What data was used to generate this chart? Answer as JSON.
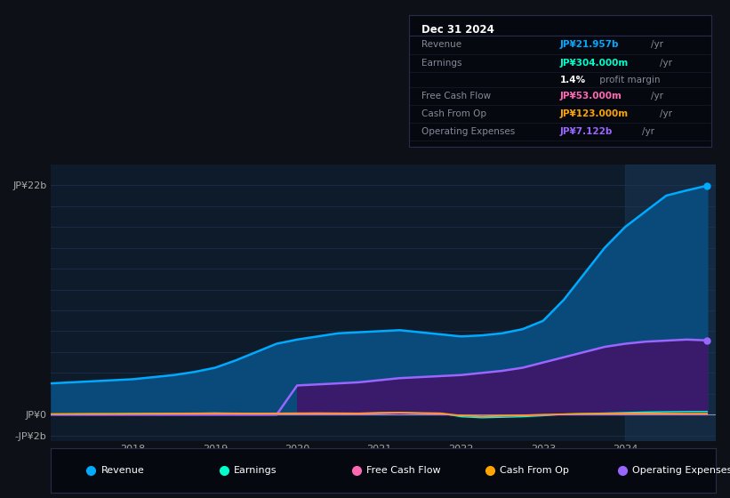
{
  "background_color": "#0d1117",
  "plot_bg_color": "#0d1b2a",
  "grid_color": "#1e3050",
  "years": [
    2017.0,
    2017.25,
    2017.5,
    2017.75,
    2018.0,
    2018.25,
    2018.5,
    2018.75,
    2019.0,
    2019.25,
    2019.5,
    2019.75,
    2020.0,
    2020.25,
    2020.5,
    2020.75,
    2021.0,
    2021.25,
    2021.5,
    2021.75,
    2022.0,
    2022.25,
    2022.5,
    2022.75,
    2023.0,
    2023.25,
    2023.5,
    2023.75,
    2024.0,
    2024.25,
    2024.5,
    2024.75,
    2025.0
  ],
  "revenue": [
    3.0,
    3.1,
    3.2,
    3.3,
    3.4,
    3.6,
    3.8,
    4.1,
    4.5,
    5.2,
    6.0,
    6.8,
    7.2,
    7.5,
    7.8,
    7.9,
    8.0,
    8.1,
    7.9,
    7.7,
    7.5,
    7.6,
    7.8,
    8.2,
    9.0,
    11.0,
    13.5,
    16.0,
    18.0,
    19.5,
    21.0,
    21.5,
    21.957
  ],
  "operating_expenses": [
    0.0,
    0.0,
    0.0,
    0.0,
    0.0,
    0.0,
    0.0,
    0.0,
    0.0,
    0.0,
    0.0,
    0.0,
    2.8,
    2.9,
    3.0,
    3.1,
    3.3,
    3.5,
    3.6,
    3.7,
    3.8,
    4.0,
    4.2,
    4.5,
    5.0,
    5.5,
    6.0,
    6.5,
    6.8,
    7.0,
    7.1,
    7.2,
    7.122
  ],
  "earnings": [
    0.05,
    0.06,
    0.07,
    0.08,
    0.1,
    0.11,
    0.12,
    0.13,
    0.15,
    0.13,
    0.12,
    0.11,
    0.1,
    0.09,
    0.1,
    0.12,
    0.15,
    0.18,
    0.14,
    0.12,
    -0.2,
    -0.3,
    -0.25,
    -0.2,
    -0.1,
    0.05,
    0.1,
    0.15,
    0.2,
    0.25,
    0.28,
    0.3,
    0.304
  ],
  "free_cash_flow": [
    0.02,
    0.02,
    0.02,
    0.02,
    0.03,
    0.04,
    0.05,
    0.05,
    0.06,
    0.05,
    0.04,
    0.05,
    0.06,
    0.07,
    0.06,
    0.05,
    0.1,
    0.15,
    0.1,
    0.05,
    -0.1,
    -0.2,
    -0.15,
    -0.1,
    -0.05,
    0.01,
    0.03,
    0.05,
    0.06,
    0.07,
    0.06,
    0.05,
    0.053
  ],
  "cash_from_op": [
    0.08,
    0.09,
    0.1,
    0.1,
    0.11,
    0.12,
    0.13,
    0.14,
    0.15,
    0.14,
    0.13,
    0.14,
    0.15,
    0.16,
    0.15,
    0.14,
    0.2,
    0.22,
    0.18,
    0.15,
    -0.08,
    -0.15,
    -0.1,
    -0.05,
    0.02,
    0.06,
    0.1,
    0.12,
    0.13,
    0.14,
    0.13,
    0.12,
    0.123
  ],
  "revenue_color": "#00aaff",
  "revenue_fill": "#0a4a7a",
  "earnings_color": "#00ffcc",
  "free_cash_flow_color": "#ff69b4",
  "cash_from_op_color": "#ffa500",
  "op_expenses_color": "#9966ff",
  "op_expenses_fill": "#3a1a6a",
  "highlight_color": "#1a3a5a",
  "ylim": [
    -2.5,
    24.0
  ],
  "xlim": [
    2017.0,
    2025.1
  ],
  "yticks": [
    -2,
    0,
    22
  ],
  "ytick_labels": [
    "-JP¥2b",
    "JP¥0",
    "JP¥22b"
  ],
  "xtick_labels": [
    "2018",
    "2019",
    "2020",
    "2021",
    "2022",
    "2023",
    "2024"
  ],
  "xtick_positions": [
    2018,
    2019,
    2020,
    2021,
    2022,
    2023,
    2024
  ],
  "info_box": {
    "title": "Dec 31 2024",
    "rows": [
      {
        "label": "Revenue",
        "value": "JP¥21.957b",
        "unit": "/yr",
        "color": "#00aaff"
      },
      {
        "label": "Earnings",
        "value": "JP¥304.000m",
        "unit": "/yr",
        "color": "#00ffcc"
      },
      {
        "label": "",
        "value": "1.4%",
        "unit": " profit margin",
        "color": "#ffffff"
      },
      {
        "label": "Free Cash Flow",
        "value": "JP¥53.000m",
        "unit": "/yr",
        "color": "#ff69b4"
      },
      {
        "label": "Cash From Op",
        "value": "JP¥123.000m",
        "unit": "/yr",
        "color": "#ffa500"
      },
      {
        "label": "Operating Expenses",
        "value": "JP¥7.122b",
        "unit": "/yr",
        "color": "#9966ff"
      }
    ]
  },
  "legend_entries": [
    {
      "label": "Revenue",
      "color": "#00aaff"
    },
    {
      "label": "Earnings",
      "color": "#00ffcc"
    },
    {
      "label": "Free Cash Flow",
      "color": "#ff69b4"
    },
    {
      "label": "Cash From Op",
      "color": "#ffa500"
    },
    {
      "label": "Operating Expenses",
      "color": "#9966ff"
    }
  ]
}
